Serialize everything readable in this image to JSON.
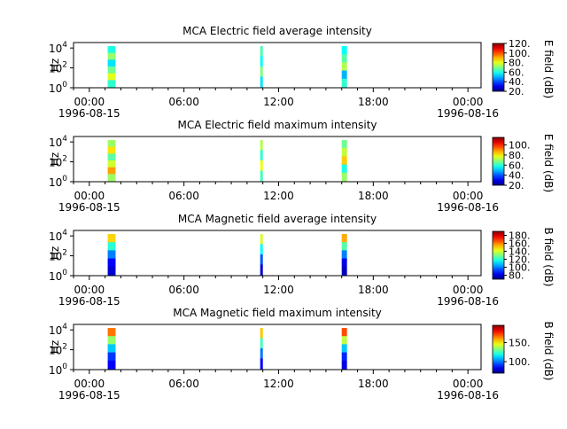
{
  "chart_data": [
    {
      "type": "heatmap",
      "title": "MCA  Electric field average intensity",
      "ylabel": "Hz",
      "y_ticks": [
        {
          "base": "10",
          "exp": "0"
        },
        {
          "base": "10",
          "exp": "2"
        },
        {
          "base": "10",
          "exp": "4"
        }
      ],
      "y_scale": "log",
      "x_range": [
        "1996-08-14 23:00",
        "1996-08-16 00:50"
      ],
      "x_tick_labels": [
        "00:00",
        "06:00",
        "12:00",
        "18:00",
        "00:00"
      ],
      "x_date_labels": [
        {
          "at": 0,
          "text": "1996-08-15"
        },
        {
          "at": 4,
          "text": "1996-08-16"
        }
      ],
      "colorbar_label": "E field (dB)",
      "colorbar_ticks": [
        "120.",
        "100.",
        "80.",
        "60.",
        "40.",
        "20."
      ],
      "colorbar_range": [
        20,
        120
      ],
      "data_intervals": [
        {
          "start": "1996-08-15 01:10",
          "end": "1996-08-15 01:40",
          "values_db": [
            60,
            72,
            55,
            68,
            80,
            62
          ]
        },
        {
          "start": "1996-08-15 10:50",
          "end": "1996-08-15 11:00",
          "values_db": [
            65,
            58,
            70,
            55
          ]
        },
        {
          "start": "1996-08-15 16:00",
          "end": "1996-08-15 16:20",
          "values_db": [
            58,
            66,
            75,
            50,
            62
          ]
        }
      ]
    },
    {
      "type": "heatmap",
      "title": "MCA  Electric field maximum intensity",
      "ylabel": "Hz",
      "y_ticks": [
        {
          "base": "10",
          "exp": "0"
        },
        {
          "base": "10",
          "exp": "2"
        },
        {
          "base": "10",
          "exp": "4"
        }
      ],
      "y_scale": "log",
      "x_range": [
        "1996-08-14 23:00",
        "1996-08-16 00:50"
      ],
      "x_tick_labels": [
        "00:00",
        "06:00",
        "12:00",
        "18:00",
        "00:00"
      ],
      "x_date_labels": [
        {
          "at": 0,
          "text": "1996-08-15"
        },
        {
          "at": 4,
          "text": "1996-08-16"
        }
      ],
      "colorbar_label": "E field (dB)",
      "colorbar_ticks": [
        "100.",
        "80.",
        "60.",
        "40.",
        "20."
      ],
      "colorbar_range": [
        20,
        115
      ],
      "data_intervals": [
        {
          "start": "1996-08-15 01:10",
          "end": "1996-08-15 01:40",
          "values_db": [
            70,
            82,
            64,
            75,
            88,
            70
          ]
        },
        {
          "start": "1996-08-15 10:50",
          "end": "1996-08-15 11:00",
          "values_db": [
            72,
            60,
            78,
            62
          ]
        },
        {
          "start": "1996-08-15 16:00",
          "end": "1996-08-15 16:20",
          "values_db": [
            66,
            74,
            84,
            58,
            70
          ]
        }
      ]
    },
    {
      "type": "heatmap",
      "title": "MCA  Magnetic field average intensity",
      "ylabel": "Hz",
      "y_ticks": [
        {
          "base": "10",
          "exp": "0"
        },
        {
          "base": "10",
          "exp": "2"
        },
        {
          "base": "10",
          "exp": "4"
        }
      ],
      "y_scale": "log",
      "x_range": [
        "1996-08-14 23:00",
        "1996-08-16 00:50"
      ],
      "x_tick_labels": [
        "00:00",
        "06:00",
        "12:00",
        "18:00",
        "00:00"
      ],
      "x_date_labels": [
        {
          "at": 0,
          "text": "1996-08-15"
        },
        {
          "at": 4,
          "text": "1996-08-16"
        }
      ],
      "colorbar_label": "B field (dB)",
      "colorbar_ticks": [
        "180.",
        "160.",
        "140.",
        "120.",
        "100.",
        "80."
      ],
      "colorbar_range": [
        70,
        190
      ],
      "data_intervals": [
        {
          "start": "1996-08-15 01:10",
          "end": "1996-08-15 01:40",
          "values_db": [
            150,
            120,
            100,
            85,
            80
          ]
        },
        {
          "start": "1996-08-15 10:50",
          "end": "1996-08-15 11:00",
          "values_db": [
            140,
            115,
            95,
            80
          ]
        },
        {
          "start": "1996-08-15 16:00",
          "end": "1996-08-15 16:20",
          "values_db": [
            155,
            125,
            100,
            82,
            78
          ]
        }
      ]
    },
    {
      "type": "heatmap",
      "title": "MCA  Magnetic field maximum intensity",
      "ylabel": "Hz",
      "y_ticks": [
        {
          "base": "10",
          "exp": "0"
        },
        {
          "base": "10",
          "exp": "2"
        },
        {
          "base": "10",
          "exp": "4"
        }
      ],
      "y_scale": "log",
      "x_range": [
        "1996-08-14 23:00",
        "1996-08-16 00:50"
      ],
      "x_tick_labels": [
        "00:00",
        "06:00",
        "12:00",
        "18:00",
        "00:00"
      ],
      "x_date_labels": [
        {
          "at": 0,
          "text": "1996-08-15"
        },
        {
          "at": 4,
          "text": "1996-08-16"
        }
      ],
      "colorbar_label": "B field (dB)",
      "colorbar_ticks": [
        "150.",
        "100."
      ],
      "colorbar_range": [
        70,
        195
      ],
      "data_intervals": [
        {
          "start": "1996-08-15 01:10",
          "end": "1996-08-15 01:40",
          "values_db": [
            165,
            135,
            110,
            92,
            85
          ]
        },
        {
          "start": "1996-08-15 10:50",
          "end": "1996-08-15 11:00",
          "values_db": [
            155,
            125,
            100,
            85
          ]
        },
        {
          "start": "1996-08-15 16:00",
          "end": "1996-08-15 16:20",
          "values_db": [
            170,
            140,
            110,
            90,
            82
          ]
        }
      ]
    }
  ]
}
